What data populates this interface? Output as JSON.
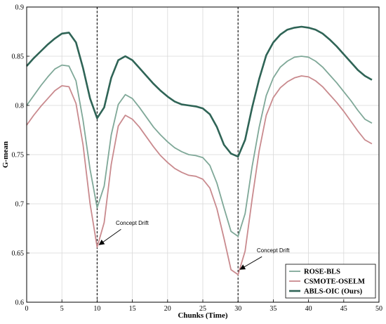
{
  "chart_data": {
    "type": "line",
    "xlabel": "Chunks (Time)",
    "ylabel": "G-mean",
    "xlim": [
      0,
      50
    ],
    "ylim": [
      0.6,
      0.9
    ],
    "xticks": [
      "0",
      "5",
      "10",
      "15",
      "20",
      "25",
      "30",
      "35",
      "40",
      "45",
      "50"
    ],
    "yticks": [
      "0.6",
      "0.65",
      "0.7",
      "0.75",
      "0.8",
      "0.85",
      "0.9"
    ],
    "grid": true,
    "legend_position": "bottom-right",
    "vlines": [
      10,
      30
    ],
    "x": [
      0,
      1,
      2,
      3,
      4,
      5,
      6,
      7,
      8,
      9,
      10,
      11,
      12,
      13,
      14,
      15,
      16,
      17,
      18,
      19,
      20,
      21,
      22,
      23,
      24,
      25,
      26,
      27,
      28,
      29,
      30,
      31,
      32,
      33,
      34,
      35,
      36,
      37,
      38,
      39,
      40,
      41,
      42,
      43,
      44,
      45,
      46,
      47,
      48,
      49
    ],
    "series": [
      {
        "name": "ROSE-BLS",
        "color": "#7fa898",
        "values": [
          0.8,
          0.81,
          0.82,
          0.829,
          0.837,
          0.841,
          0.84,
          0.825,
          0.785,
          0.735,
          0.696,
          0.718,
          0.77,
          0.801,
          0.811,
          0.807,
          0.798,
          0.788,
          0.778,
          0.77,
          0.763,
          0.757,
          0.753,
          0.75,
          0.749,
          0.747,
          0.739,
          0.721,
          0.696,
          0.672,
          0.667,
          0.69,
          0.738,
          0.778,
          0.81,
          0.828,
          0.839,
          0.845,
          0.849,
          0.85,
          0.849,
          0.845,
          0.839,
          0.831,
          0.823,
          0.814,
          0.805,
          0.795,
          0.786,
          0.782
        ]
      },
      {
        "name": "CSMOTE-OSELM",
        "color": "#c98a8e",
        "values": [
          0.78,
          0.79,
          0.799,
          0.807,
          0.815,
          0.82,
          0.819,
          0.802,
          0.76,
          0.7,
          0.656,
          0.681,
          0.74,
          0.779,
          0.79,
          0.786,
          0.778,
          0.768,
          0.758,
          0.749,
          0.742,
          0.736,
          0.732,
          0.729,
          0.728,
          0.725,
          0.716,
          0.695,
          0.665,
          0.633,
          0.628,
          0.652,
          0.705,
          0.754,
          0.79,
          0.808,
          0.818,
          0.824,
          0.828,
          0.83,
          0.829,
          0.825,
          0.819,
          0.811,
          0.803,
          0.794,
          0.784,
          0.774,
          0.765,
          0.761
        ]
      },
      {
        "name": "ABLS-OIC (Ours)",
        "color": "#2f6456",
        "values": [
          0.84,
          0.848,
          0.855,
          0.862,
          0.868,
          0.873,
          0.874,
          0.864,
          0.838,
          0.807,
          0.787,
          0.798,
          0.828,
          0.846,
          0.85,
          0.846,
          0.838,
          0.83,
          0.822,
          0.815,
          0.809,
          0.804,
          0.801,
          0.8,
          0.799,
          0.797,
          0.791,
          0.778,
          0.76,
          0.751,
          0.748,
          0.765,
          0.798,
          0.827,
          0.851,
          0.864,
          0.872,
          0.877,
          0.879,
          0.88,
          0.879,
          0.877,
          0.873,
          0.867,
          0.86,
          0.852,
          0.844,
          0.836,
          0.83,
          0.826
        ]
      }
    ],
    "annotations": [
      {
        "text": "Concept Drift",
        "arrow_target": [
          10,
          0.657
        ]
      },
      {
        "text": "Concept Drift",
        "arrow_target": [
          30,
          0.632
        ]
      }
    ]
  }
}
